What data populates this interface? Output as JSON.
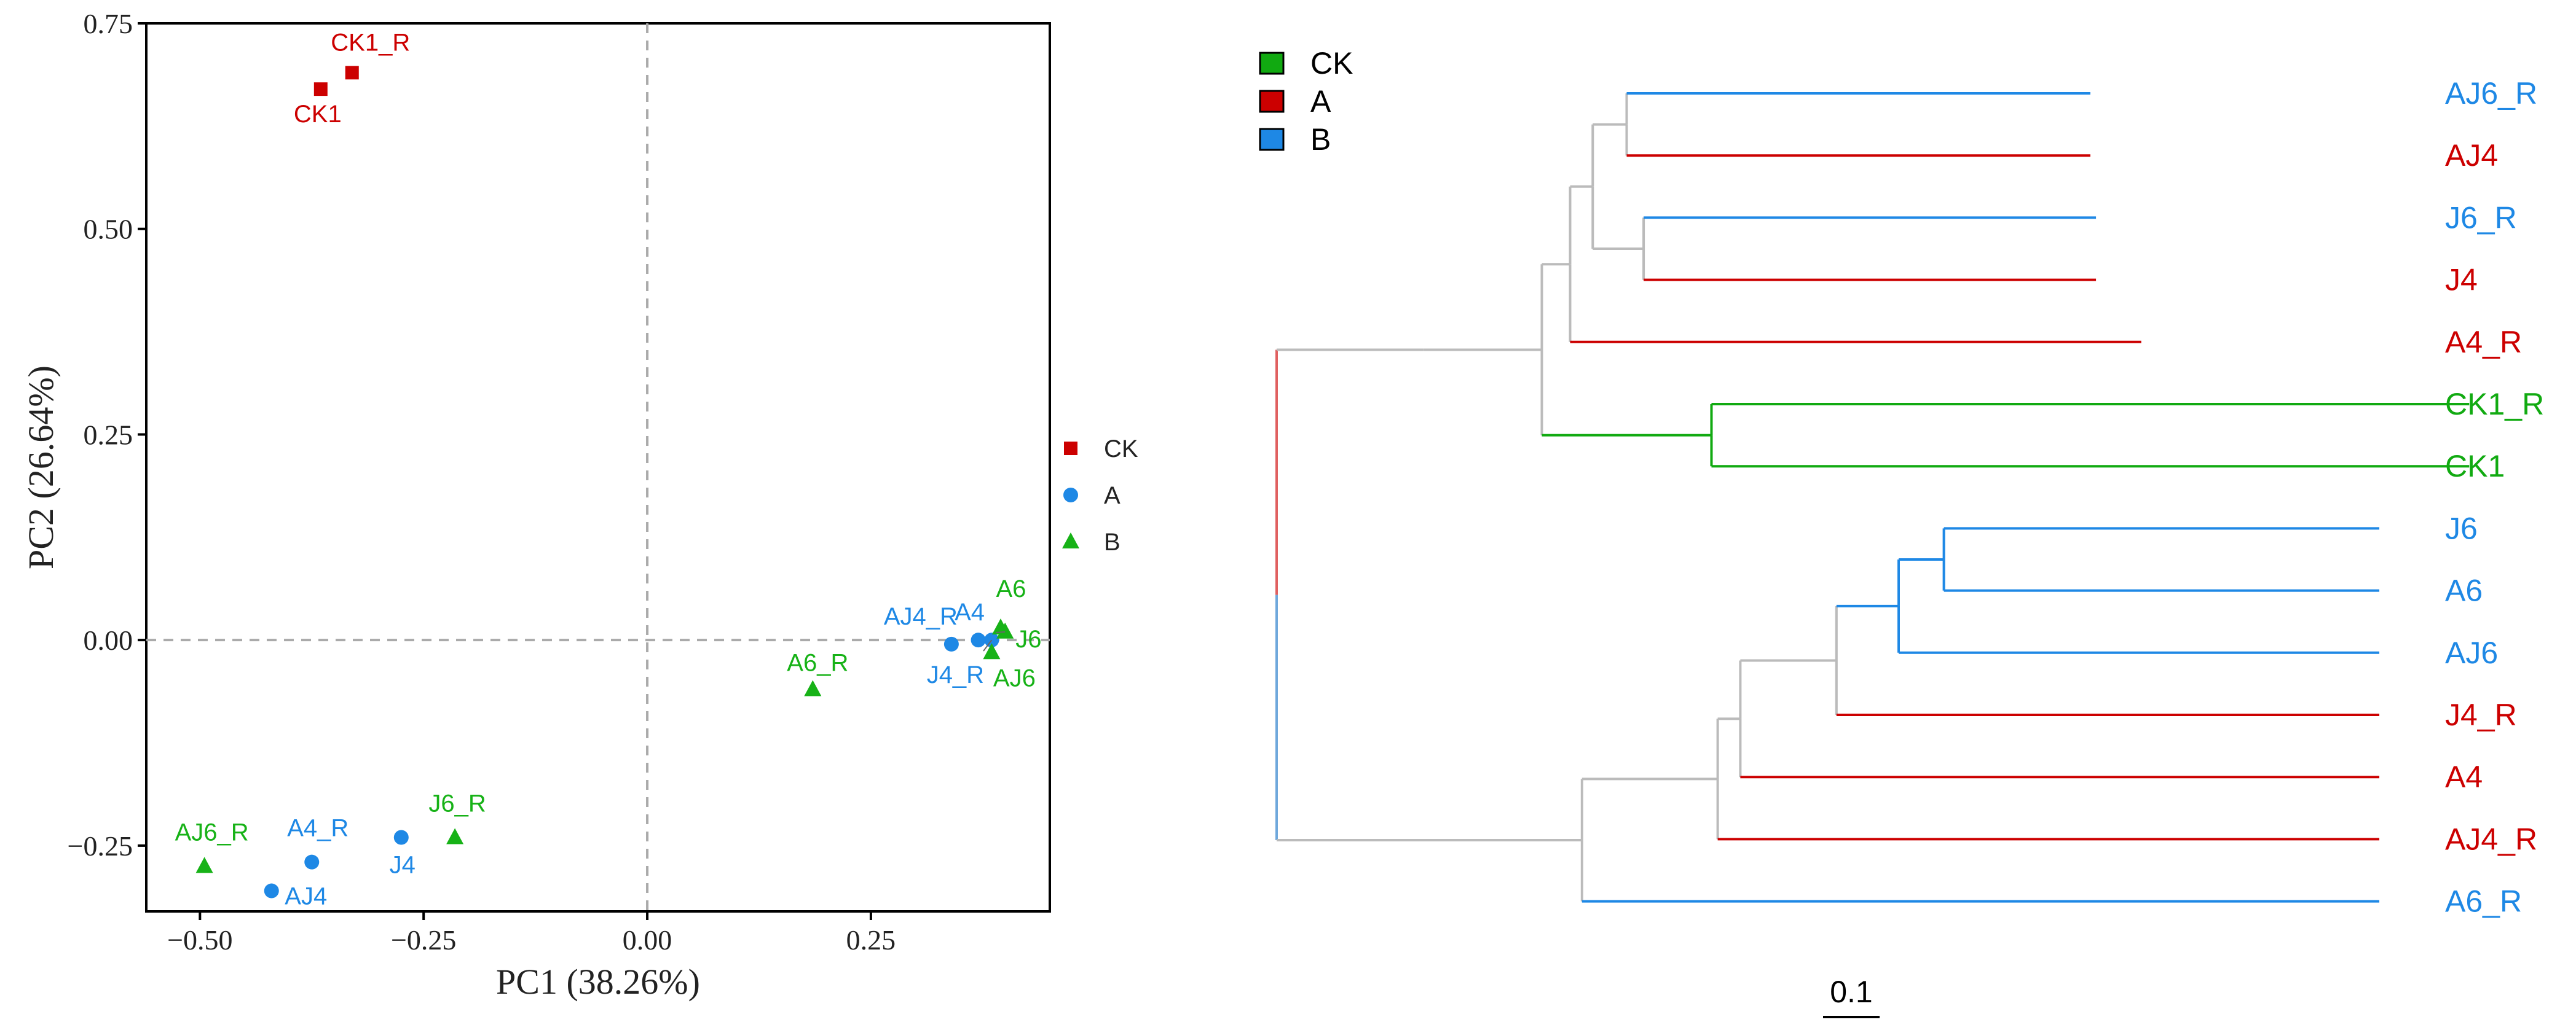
{
  "chart_data": [
    {
      "type": "scatter",
      "xlabel": "PC1 (38.26%)",
      "ylabel": "PC2 (26.64%)",
      "xlim": [
        -0.56,
        0.45
      ],
      "ylim": [
        -0.33,
        0.75
      ],
      "xticks": [
        -0.5,
        -0.25,
        0.0,
        0.25
      ],
      "xtick_labels": [
        "−0.50",
        "−0.25",
        "0.00",
        "0.25"
      ],
      "yticks": [
        -0.25,
        0.0,
        0.25,
        0.5,
        0.75
      ],
      "ytick_labels": [
        "−0.25",
        "0.00",
        "0.25",
        "0.50",
        "0.75"
      ],
      "grid": false,
      "reference_lines": "dashed lines at x = 0 and y = 0",
      "legend": {
        "placement": "right",
        "entries": [
          {
            "name": "CK",
            "shape": "square",
            "color": "#CC0000"
          },
          {
            "name": "A",
            "shape": "circle",
            "color": "#1E88E5"
          },
          {
            "name": "B",
            "shape": "triangle",
            "color": "#17B217"
          }
        ]
      },
      "points": [
        {
          "label": "CK1_R",
          "group": "CK",
          "x": -0.33,
          "y": 0.69
        },
        {
          "label": "CK1",
          "group": "CK",
          "x": -0.365,
          "y": 0.67
        },
        {
          "label": "AJ4_R",
          "group": "A",
          "x": 0.34,
          "y": -0.005
        },
        {
          "label": "A4",
          "group": "A",
          "x": 0.37,
          "y": 0.0
        },
        {
          "label": "J4_R",
          "group": "A",
          "x": 0.385,
          "y": 0.0
        },
        {
          "label": "A4_R",
          "group": "A",
          "x": -0.375,
          "y": -0.27
        },
        {
          "label": "J4",
          "group": "A",
          "x": -0.275,
          "y": -0.24
        },
        {
          "label": "AJ4",
          "group": "A",
          "x": -0.42,
          "y": -0.305
        },
        {
          "label": "A6",
          "group": "B",
          "x": 0.395,
          "y": 0.015
        },
        {
          "label": "J6",
          "group": "B",
          "x": 0.4,
          "y": 0.01
        },
        {
          "label": "AJ6",
          "group": "B",
          "x": 0.385,
          "y": -0.015
        },
        {
          "label": "A6_R",
          "group": "B",
          "x": 0.185,
          "y": -0.06
        },
        {
          "label": "J6_R",
          "group": "B",
          "x": -0.215,
          "y": -0.24
        },
        {
          "label": "AJ6_R",
          "group": "B",
          "x": -0.495,
          "y": -0.275
        }
      ]
    },
    {
      "type": "dendrogram",
      "legend": {
        "placement": "top-left",
        "entries": [
          {
            "name": "CK",
            "color": "#11AA11"
          },
          {
            "name": "A",
            "color": "#CC0000"
          },
          {
            "name": "B",
            "color": "#1E88E5"
          }
        ]
      },
      "scale_bar_label": "0.1",
      "leaves": [
        {
          "label": "AJ6_R",
          "group": "B"
        },
        {
          "label": "AJ4",
          "group": "A"
        },
        {
          "label": "J6_R",
          "group": "B"
        },
        {
          "label": "J4",
          "group": "A"
        },
        {
          "label": "A4_R",
          "group": "A"
        },
        {
          "label": "CK1_R",
          "group": "CK"
        },
        {
          "label": "CK1",
          "group": "CK"
        },
        {
          "label": "J6",
          "group": "B"
        },
        {
          "label": "A6",
          "group": "B"
        },
        {
          "label": "AJ6",
          "group": "B"
        },
        {
          "label": "J4_R",
          "group": "A"
        },
        {
          "label": "A4",
          "group": "A"
        },
        {
          "label": "AJ4_R",
          "group": "A"
        },
        {
          "label": "A6_R",
          "group": "B"
        }
      ],
      "tree": {
        "children": [
          {
            "branch": 0.259,
            "children": [
              {
                "branch": 0.21,
                "children": [
                  {
                    "branch": 0.05,
                    "children": [
                      {
                        "branch": 0.04,
                        "children": [
                          {
                            "branch": 0.06,
                            "children": [
                              {
                                "branch": 0.82,
                                "leaf": "AJ6_R"
                              },
                              {
                                "branch": 0.82,
                                "leaf": "AJ4"
                              }
                            ]
                          },
                          {
                            "branch": 0.09,
                            "children": [
                              {
                                "branch": 0.8,
                                "leaf": "J6_R"
                              },
                              {
                                "branch": 0.8,
                                "leaf": "J4"
                              }
                            ]
                          }
                        ]
                      },
                      {
                        "branch": 1.01,
                        "leaf": "A4_R"
                      }
                    ]
                  },
                  {
                    "branch": 0.3,
                    "children": [
                      {
                        "branch": 1.34,
                        "leaf": "CK1_R"
                      },
                      {
                        "branch": 1.34,
                        "leaf": "CK1"
                      }
                    ]
                  }
                ]
              }
            ]
          },
          {
            "branch": 0.54,
            "children": [
              {
                "branch": 0.24,
                "children": [
                  {
                    "branch": 0.04,
                    "children": [
                      {
                        "branch": 0.17,
                        "children": [
                          {
                            "branch": 0.11,
                            "children": [
                              {
                                "branch": 0.08,
                                "children": [
                                  {
                                    "branch": 0.77,
                                    "leaf": "J6"
                                  },
                                  {
                                    "branch": 0.77,
                                    "leaf": "A6"
                                  }
                                ]
                              },
                              {
                                "branch": 0.85,
                                "leaf": "AJ6"
                              }
                            ]
                          },
                          {
                            "branch": 0.96,
                            "leaf": "J4_R"
                          }
                        ]
                      },
                      {
                        "branch": 1.13,
                        "leaf": "A4"
                      }
                    ]
                  },
                  {
                    "branch": 1.17,
                    "leaf": "AJ4_R"
                  }
                ]
              },
              {
                "branch": 1.41,
                "leaf": "A6_R"
              }
            ]
          }
        ]
      },
      "branch_colors": {
        "A": "#CC0000",
        "B": "#1E88E5",
        "CK": "#11AA11",
        "mixed": "#BBBBBB",
        "root": "#E06060",
        "root_b": "#6FA8DC"
      }
    }
  ]
}
